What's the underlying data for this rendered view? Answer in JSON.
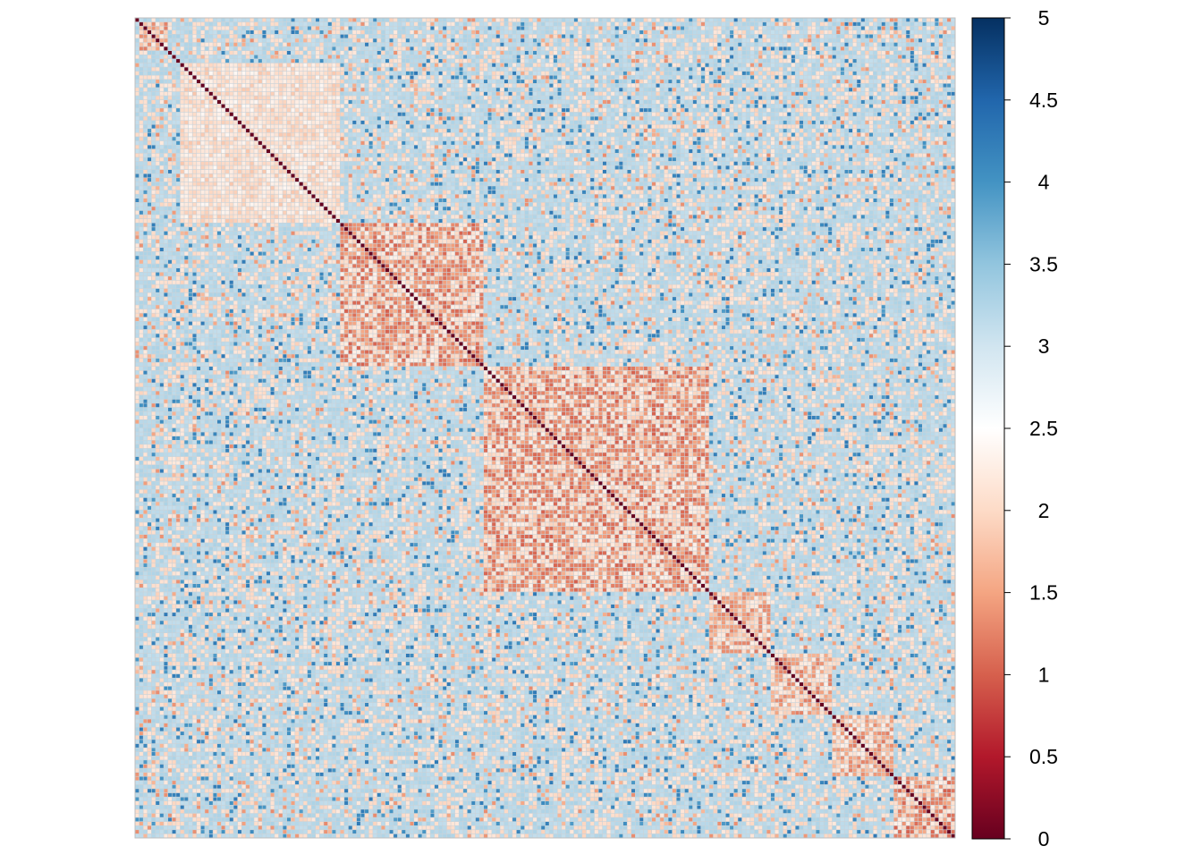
{
  "chart_data": {
    "type": "heatmap",
    "title": "",
    "xlabel": "",
    "ylabel": "",
    "matrix_size": 200,
    "diagonal_value": 0,
    "background_value": 3.2,
    "value_range": [
      0,
      5
    ],
    "blocks": [
      {
        "start": 1,
        "end": 8,
        "value": 1.2
      },
      {
        "start": 11,
        "end": 50,
        "value": 1.8
      },
      {
        "start": 50,
        "end": 85,
        "value": 1.0
      },
      {
        "start": 85,
        "end": 140,
        "value": 1.0
      },
      {
        "start": 140,
        "end": 155,
        "value": 1.2
      },
      {
        "start": 155,
        "end": 170,
        "value": 1.2
      },
      {
        "start": 170,
        "end": 185,
        "value": 1.2
      },
      {
        "start": 185,
        "end": 200,
        "value": 1.0
      }
    ],
    "colorbar": {
      "ticks": [
        0,
        0.5,
        1,
        1.5,
        2,
        2.5,
        3,
        3.5,
        4,
        4.5,
        5
      ],
      "tick_labels": [
        "0",
        "0.5",
        "1",
        "1.5",
        "2",
        "2.5",
        "3",
        "3.5",
        "4",
        "4.5",
        "5"
      ],
      "colors": [
        "#67001f",
        "#b2182b",
        "#d6604d",
        "#f4a582",
        "#fddbc7",
        "#ffffff",
        "#d1e5f0",
        "#92c5de",
        "#4393c3",
        "#2166ac",
        "#053061"
      ]
    },
    "grid": true,
    "legend_placement": "right"
  }
}
